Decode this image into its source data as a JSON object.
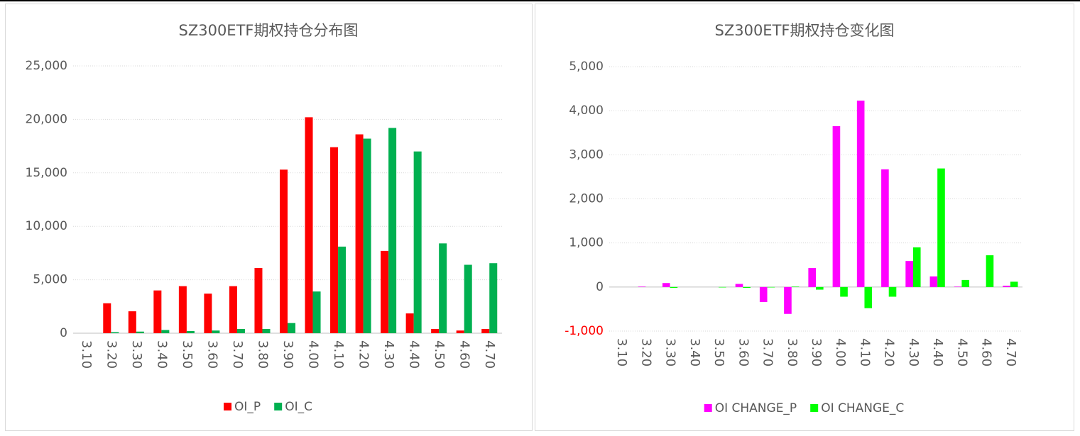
{
  "chart_data": [
    {
      "type": "bar",
      "title": "SZ300ETF期权持仓分布图",
      "categories": [
        "3.10",
        "3.20",
        "3.30",
        "3.40",
        "3.50",
        "3.60",
        "3.70",
        "3.80",
        "3.90",
        "4.00",
        "4.10",
        "4.20",
        "4.30",
        "4.40",
        "4.50",
        "4.60",
        "4.70"
      ],
      "series": [
        {
          "name": "OI_P",
          "color": "#ff0000",
          "values": [
            0,
            2800,
            2050,
            4000,
            4400,
            3700,
            4400,
            6100,
            15300,
            20200,
            17400,
            18600,
            7700,
            1850,
            400,
            250,
            400
          ]
        },
        {
          "name": "OI_C",
          "color": "#00b050",
          "values": [
            0,
            100,
            150,
            300,
            200,
            250,
            400,
            400,
            950,
            3900,
            8100,
            18200,
            19200,
            17000,
            8400,
            6400,
            6550
          ]
        }
      ],
      "ylim": [
        0,
        25000
      ],
      "yticks": [
        0,
        {
          "value": 5000,
          "label": "5,000"
        },
        {
          "value": 10000,
          "label": "10,000"
        },
        {
          "value": 15000,
          "label": "15,000"
        },
        {
          "value": 20000,
          "label": "20,000"
        },
        {
          "value": 25000,
          "label": "25,000"
        }
      ],
      "grid": true,
      "legend": "bottom"
    },
    {
      "type": "bar",
      "title": "SZ300ETF期权持仓变化图",
      "categories": [
        "3.10",
        "3.20",
        "3.30",
        "3.40",
        "3.50",
        "3.60",
        "3.70",
        "3.80",
        "3.90",
        "4.00",
        "4.10",
        "4.20",
        "4.30",
        "4.40",
        "4.50",
        "4.60",
        "4.70"
      ],
      "series": [
        {
          "name": "OI CHANGE_P",
          "color": "#ff00ff",
          "values": [
            0,
            10,
            90,
            0,
            0,
            70,
            -340,
            -610,
            430,
            3650,
            4230,
            2670,
            590,
            240,
            10,
            0,
            30
          ]
        },
        {
          "name": "OI CHANGE_C",
          "color": "#00ff00",
          "values": [
            0,
            0,
            -20,
            0,
            -10,
            -20,
            -10,
            10,
            -60,
            -220,
            -480,
            -220,
            900,
            2690,
            160,
            720,
            120
          ]
        }
      ],
      "ylim": [
        -1000,
        5000
      ],
      "yticks": [
        {
          "value": -1000,
          "label": "-1,000"
        },
        0,
        {
          "value": 1000,
          "label": "1,000"
        },
        {
          "value": 2000,
          "label": "2,000"
        },
        {
          "value": 3000,
          "label": "3,000"
        },
        {
          "value": 4000,
          "label": "4,000"
        },
        {
          "value": 5000,
          "label": "5,000"
        }
      ],
      "negative_tick_color": "#ff0000",
      "grid": true,
      "legend": "bottom"
    }
  ]
}
